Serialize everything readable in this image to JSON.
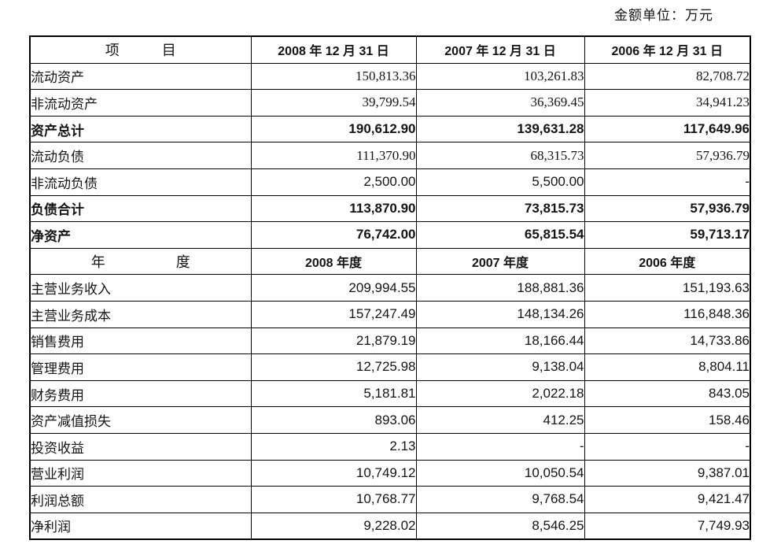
{
  "unit_label": "金额单位：万元",
  "table": {
    "sections": [
      {
        "header": {
          "item": "项　　　目",
          "cols": [
            "2008 年 12 月 31 日",
            "2007 年 12 月 31 日",
            "2006 年 12 月 31 日"
          ]
        },
        "rows": [
          {
            "label": "流动资产",
            "values": [
              "150,813.36",
              "103,261.83",
              "82,708.72"
            ],
            "bold": false,
            "serif_nums": true
          },
          {
            "label": "非流动资产",
            "values": [
              "39,799.54",
              "36,369.45",
              "34,941.23"
            ],
            "bold": false,
            "serif_nums": true
          },
          {
            "label": "资产总计",
            "values": [
              "190,612.90",
              "139,631.28",
              "117,649.96"
            ],
            "bold": true,
            "serif_nums": false
          },
          {
            "label": "流动负债",
            "values": [
              "111,370.90",
              "68,315.73",
              "57,936.79"
            ],
            "bold": false,
            "serif_nums": true
          },
          {
            "label": "非流动负债",
            "values": [
              "2,500.00",
              "5,500.00",
              "-"
            ],
            "bold": false,
            "serif_nums": false
          },
          {
            "label": "负债合计",
            "values": [
              "113,870.90",
              "73,815.73",
              "57,936.79"
            ],
            "bold": true,
            "serif_nums": false
          },
          {
            "label": "净资产",
            "values": [
              "76,742.00",
              "65,815.54",
              "59,713.17"
            ],
            "bold": true,
            "serif_nums": false
          }
        ]
      },
      {
        "header": {
          "item": "年　　　　　度",
          "cols": [
            "2008 年度",
            "2007 年度",
            "2006 年度"
          ]
        },
        "rows": [
          {
            "label": "主营业务收入",
            "values": [
              "209,994.55",
              "188,881.36",
              "151,193.63"
            ],
            "bold": false,
            "serif_nums": false
          },
          {
            "label": "主营业务成本",
            "values": [
              "157,247.49",
              "148,134.26",
              "116,848.36"
            ],
            "bold": false,
            "serif_nums": false
          },
          {
            "label": "销售费用",
            "values": [
              "21,879.19",
              "18,166.44",
              "14,733.86"
            ],
            "bold": false,
            "serif_nums": false
          },
          {
            "label": "管理费用",
            "values": [
              "12,725.98",
              "9,138.04",
              "8,804.11"
            ],
            "bold": false,
            "serif_nums": false
          },
          {
            "label": "财务费用",
            "values": [
              "5,181.81",
              "2,022.18",
              "843.05"
            ],
            "bold": false,
            "serif_nums": false
          },
          {
            "label": "资产减值损失",
            "values": [
              "893.06",
              "412.25",
              "158.46"
            ],
            "bold": false,
            "serif_nums": false
          },
          {
            "label": "投资收益",
            "values": [
              "2.13",
              "-",
              "-"
            ],
            "bold": false,
            "serif_nums": false
          },
          {
            "label": "营业利润",
            "values": [
              "10,749.12",
              "10,050.54",
              "9,387.01"
            ],
            "bold": false,
            "serif_nums": false
          },
          {
            "label": "利润总额",
            "values": [
              "10,768.77",
              "9,768.54",
              "9,421.47"
            ],
            "bold": false,
            "serif_nums": false
          },
          {
            "label": "净利润",
            "values": [
              "9,228.02",
              "8,546.25",
              "7,749.93"
            ],
            "bold": false,
            "serif_nums": false
          }
        ]
      }
    ]
  }
}
